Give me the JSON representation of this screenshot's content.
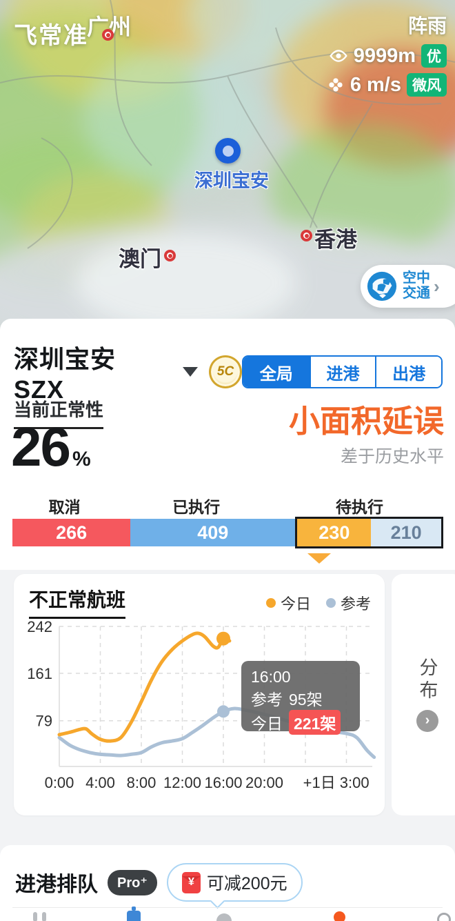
{
  "map": {
    "logo": "飞常准",
    "weather": {
      "condition": "阵雨",
      "visibility": "9999m",
      "visibility_grade": "优",
      "wind_speed": "6 m/s",
      "wind_grade": "微风"
    },
    "cities": {
      "guangzhou": "广州",
      "shenzhen_airport": "深圳宝安",
      "hongkong": "香港",
      "macau": "澳门"
    },
    "air_traffic_button": {
      "line1": "空中",
      "line2": "交通",
      "chevron": "›"
    }
  },
  "airport": {
    "name": "深圳宝安",
    "code": "SZX",
    "rating_badge": "5C",
    "tabs": [
      {
        "label": "全局",
        "active": true
      },
      {
        "label": "进港",
        "active": false
      },
      {
        "label": "出港",
        "active": false
      }
    ]
  },
  "status": {
    "normality_label": "当前正常性",
    "normality_value": "26",
    "normality_unit": "%",
    "delay_level": "小面积延误",
    "comparison": "差于历史水平"
  },
  "flight_stats": {
    "segments": [
      {
        "label": "取消",
        "value": 266,
        "color": "#f5585e",
        "text_color": "#ffffff"
      },
      {
        "label": "已执行",
        "value": 409,
        "color": "#6fb0e8",
        "text_color": "#ffffff"
      },
      {
        "label": "待执行",
        "value": 230,
        "color": "#f8b43d",
        "text_color": "#ffffff"
      },
      {
        "label": "",
        "value": 210,
        "color": "#d9e8f4",
        "text_color": "#68809a"
      }
    ]
  },
  "chart_data": {
    "type": "line",
    "title": "不正常航班",
    "x_unit": "hour",
    "x_domain": [
      0,
      30.5
    ],
    "x_ticks": [
      {
        "h": 0,
        "label": "0:00"
      },
      {
        "h": 4,
        "label": "4:00"
      },
      {
        "h": 8,
        "label": "8:00"
      },
      {
        "h": 12,
        "label": "12:00"
      },
      {
        "h": 16,
        "label": "16:00"
      },
      {
        "h": 20,
        "label": "20:00"
      },
      {
        "h": 27,
        "label": "+1日 3:00"
      }
    ],
    "x_gridline_hours": [
      4,
      8,
      12,
      16,
      20,
      24,
      28
    ],
    "y_ticks": [
      79,
      161,
      242
    ],
    "ylim": [
      0,
      260
    ],
    "grid": "dashed",
    "legend_position": "top-right",
    "series": [
      {
        "name": "今日",
        "color": "#f6a72c",
        "marker_at": {
          "x": 16,
          "y": 221
        },
        "points": [
          [
            0,
            55
          ],
          [
            1,
            59
          ],
          [
            2,
            64
          ],
          [
            2.6,
            65
          ],
          [
            3.2,
            56
          ],
          [
            4,
            47
          ],
          [
            5,
            44
          ],
          [
            6,
            50
          ],
          [
            7,
            76
          ],
          [
            8,
            112
          ],
          [
            9,
            150
          ],
          [
            10,
            181
          ],
          [
            11,
            202
          ],
          [
            12,
            217
          ],
          [
            13,
            228
          ],
          [
            13.6,
            230
          ],
          [
            14.2,
            224
          ],
          [
            15,
            208
          ],
          [
            15.5,
            206
          ],
          [
            16,
            221
          ],
          [
            16.6,
            217
          ]
        ]
      },
      {
        "name": "参考",
        "color": "#abc0d6",
        "marker_at": {
          "x": 16,
          "y": 95
        },
        "points": [
          [
            0,
            50
          ],
          [
            1,
            37
          ],
          [
            2,
            29
          ],
          [
            3,
            24
          ],
          [
            4,
            21
          ],
          [
            5,
            20
          ],
          [
            6,
            19
          ],
          [
            7,
            21
          ],
          [
            8,
            24
          ],
          [
            9,
            34
          ],
          [
            10,
            41
          ],
          [
            11,
            44
          ],
          [
            12,
            48
          ],
          [
            13,
            59
          ],
          [
            14,
            71
          ],
          [
            15,
            84
          ],
          [
            16,
            95
          ],
          [
            17,
            100
          ],
          [
            18,
            98
          ],
          [
            20,
            90
          ],
          [
            22,
            80
          ],
          [
            24,
            70
          ],
          [
            26,
            62
          ],
          [
            28,
            57
          ],
          [
            29,
            50
          ],
          [
            30,
            28
          ],
          [
            30.7,
            16
          ]
        ]
      }
    ]
  },
  "chart_tooltip": {
    "time": "16:00",
    "ref_label": "参考",
    "ref_value": "95架",
    "today_label": "今日",
    "today_value": "221架"
  },
  "distribution_panel": {
    "label": "分布",
    "chevron": "›"
  },
  "arrival_queue": {
    "title": "进港排队",
    "pro_badge": "Pro⁺",
    "coupon_text": "可减200元",
    "coupon_currency": "¥"
  }
}
